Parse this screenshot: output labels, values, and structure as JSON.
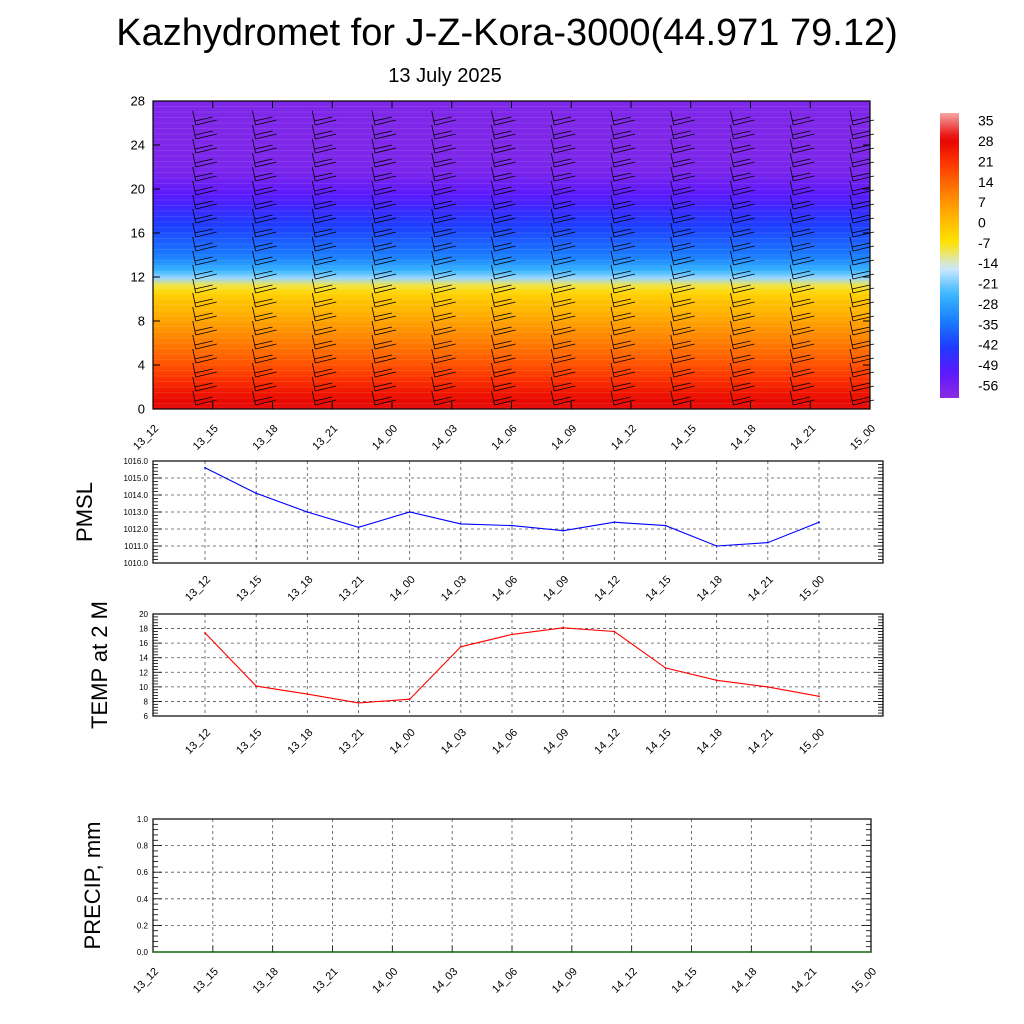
{
  "title": "Kazhydromet for J-Z-Kora-3000(44.971 79.12)",
  "subtitle": "13 July 2025",
  "chart_data": [
    {
      "type": "heatmap",
      "title": "Kazhydromet for J-Z-Kora-3000(44.971 79.12)",
      "subtitle": "13 July 2025",
      "x_ticks": [
        "13_12",
        "13_15",
        "13_18",
        "13_21",
        "14_00",
        "14_03",
        "14_06",
        "14_09",
        "14_12",
        "14_15",
        "14_18",
        "14_21",
        "15_00"
      ],
      "y_ticks": [
        0,
        4,
        8,
        12,
        16,
        20,
        24,
        28
      ],
      "ylim": [
        0,
        28
      ],
      "colorbar_labels": [
        35,
        28,
        21,
        14,
        7,
        0,
        -7,
        -14,
        -21,
        -28,
        -35,
        -42,
        -49,
        -56
      ],
      "colorbar_range": [
        -60,
        38
      ],
      "field_profile": [
        {
          "level": 0,
          "value": 30
        },
        {
          "level": 2,
          "value": 24
        },
        {
          "level": 4,
          "value": 17
        },
        {
          "level": 6,
          "value": 11
        },
        {
          "level": 8,
          "value": 5
        },
        {
          "level": 10,
          "value": -1
        },
        {
          "level": 11,
          "value": -6
        },
        {
          "level": 12,
          "value": -20
        },
        {
          "level": 13,
          "value": -28
        },
        {
          "level": 14,
          "value": -34
        },
        {
          "level": 16,
          "value": -40
        },
        {
          "level": 18,
          "value": -46
        },
        {
          "level": 20,
          "value": -53
        },
        {
          "level": 21.5,
          "value": -57
        },
        {
          "level": 24,
          "value": -58
        },
        {
          "level": 28,
          "value": -58
        }
      ],
      "wind_barbs": true,
      "colors": {
        "ramp": [
          "#8a2be2",
          "#5a18ff",
          "#1e3cff",
          "#1a7fff",
          "#37b7ff",
          "#cfe8ff",
          "#ffe300",
          "#ffb400",
          "#ff7a00",
          "#ff3a00",
          "#e60000",
          "#f7a6a6"
        ]
      }
    },
    {
      "type": "line",
      "ylabel": "PMSL",
      "categories": [
        "13_12",
        "13_15",
        "13_18",
        "13_21",
        "14_00",
        "14_03",
        "14_06",
        "14_09",
        "14_12",
        "14_15",
        "14_18",
        "14_21",
        "15_00"
      ],
      "values": [
        1015.6,
        1014.1,
        1013.0,
        1012.1,
        1013.0,
        1012.3,
        1012.2,
        1011.9,
        1012.4,
        1012.2,
        1011.0,
        1011.2,
        1012.4
      ],
      "ylim": [
        1010.0,
        1016.0
      ],
      "y_ticks": [
        "1010.0",
        "1011.0",
        "1012.0",
        "1013.0",
        "1014.0",
        "1015.0",
        "1016.0"
      ],
      "grid": true,
      "color": "#0000ff"
    },
    {
      "type": "line",
      "ylabel": "TEMP at 2 M",
      "categories": [
        "13_12",
        "13_15",
        "13_18",
        "13_21",
        "14_00",
        "14_03",
        "14_06",
        "14_09",
        "14_12",
        "14_15",
        "14_18",
        "14_21",
        "15_00"
      ],
      "values": [
        17.4,
        10.1,
        9.0,
        7.8,
        8.3,
        15.5,
        17.2,
        18.1,
        17.6,
        12.6,
        10.9,
        10.0,
        8.7
      ],
      "ylim": [
        6,
        20
      ],
      "y_ticks": [
        "6",
        "8",
        "10",
        "12",
        "14",
        "16",
        "18",
        "20"
      ],
      "grid": true,
      "color": "#ff0000"
    },
    {
      "type": "line",
      "ylabel": "PRECIP, mm",
      "categories": [
        "13_12",
        "13_15",
        "13_18",
        "13_21",
        "14_00",
        "14_03",
        "14_06",
        "14_09",
        "14_12",
        "14_15",
        "14_18",
        "14_21",
        "15_00"
      ],
      "values": [
        0,
        0,
        0,
        0,
        0,
        0,
        0,
        0,
        0,
        0,
        0,
        0,
        0
      ],
      "ylim": [
        0.0,
        1.0
      ],
      "y_ticks": [
        "0.0",
        "0.2",
        "0.4",
        "0.6",
        "0.8",
        "1.0"
      ],
      "grid": true,
      "color": "#006400"
    }
  ]
}
